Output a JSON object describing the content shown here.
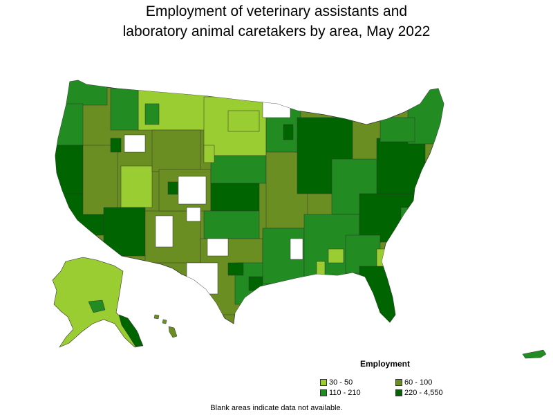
{
  "title_lines": [
    "Employment of veterinary assistants and",
    "laboratory animal caretakers by area, May 2022"
  ],
  "legend": {
    "title": "Employment",
    "items": [
      {
        "label": "30 - 50",
        "color": "#9acd32"
      },
      {
        "label": "60 - 100",
        "color": "#6b8e23"
      },
      {
        "label": "110 - 210",
        "color": "#228b22"
      },
      {
        "label": "220 - 4,550",
        "color": "#006400"
      }
    ]
  },
  "note": "Blank areas indicate data not available.",
  "colors": {
    "border": "#333333",
    "no_data": "#ffffff"
  }
}
